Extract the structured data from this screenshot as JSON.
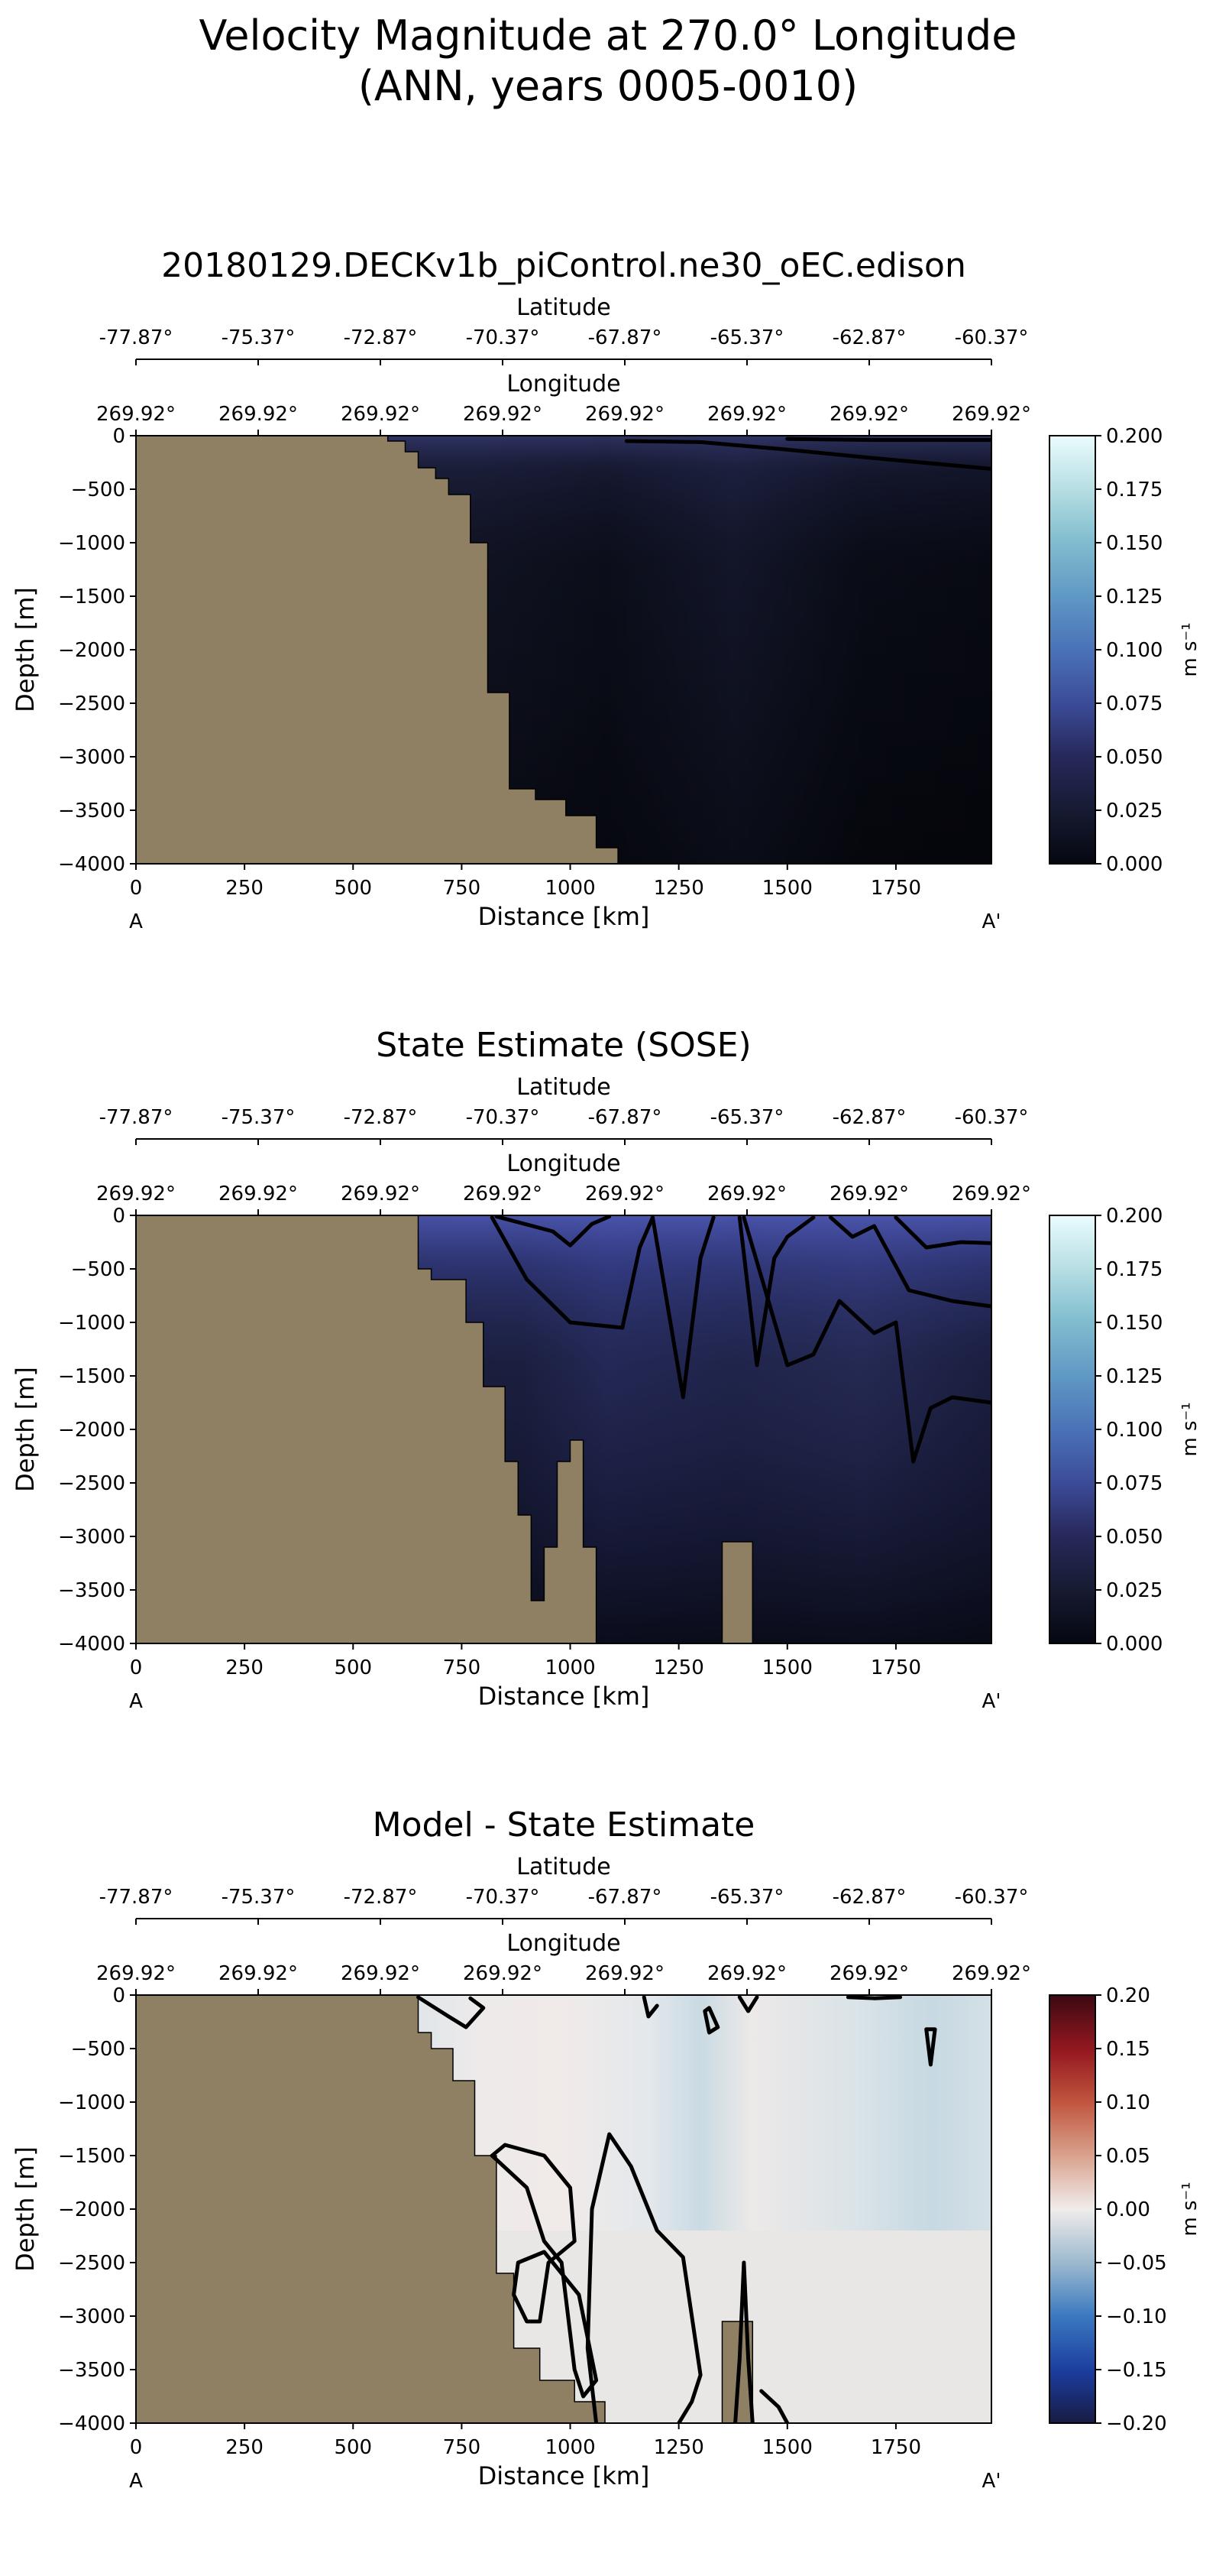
{
  "figure": {
    "suptitle_line1": "Velocity Magnitude at 270.0° Longitude",
    "suptitle_line2": "(ANN, years 0005-0010)"
  },
  "chart_data": [
    {
      "type": "heatmap",
      "title": "20180129.DECKv1b_piControl.ne30_oEC.edison",
      "xlabel": "Distance [km]",
      "ylabel": "Depth [m]",
      "xlim": [
        0,
        1970
      ],
      "ylim": [
        -4000,
        0
      ],
      "xticks": [
        0,
        250,
        500,
        750,
        1000,
        1250,
        1500,
        1750
      ],
      "yticks": [
        0,
        -500,
        -1000,
        -1500,
        -2000,
        -2500,
        -3000,
        -3500,
        -4000
      ],
      "start_label": "A",
      "end_label": "A'",
      "lat_axis_label": "Latitude",
      "lat_ticks": [
        "-77.87°",
        "-75.37°",
        "-72.87°",
        "-70.37°",
        "-67.87°",
        "-65.37°",
        "-62.87°",
        "-60.37°"
      ],
      "lon_axis_label": "Longitude",
      "lon_ticks": [
        "269.92°",
        "269.92°",
        "269.92°",
        "269.92°",
        "269.92°",
        "269.92°",
        "269.92°",
        "269.92°"
      ],
      "colorbar": {
        "label": "m s⁻¹",
        "range": [
          0,
          0.2
        ],
        "ticks": [
          "0.000",
          "0.025",
          "0.050",
          "0.075",
          "0.100",
          "0.125",
          "0.150",
          "0.175",
          "0.200"
        ],
        "colormap": "ice"
      },
      "land_color": "#8f8064",
      "bathymetry": [
        [
          0,
          0
        ],
        [
          580,
          0
        ],
        [
          580,
          -50
        ],
        [
          620,
          -50
        ],
        [
          620,
          -150
        ],
        [
          650,
          -150
        ],
        [
          650,
          -300
        ],
        [
          690,
          -300
        ],
        [
          690,
          -400
        ],
        [
          720,
          -400
        ],
        [
          720,
          -550
        ],
        [
          770,
          -550
        ],
        [
          770,
          -1000
        ],
        [
          810,
          -1000
        ],
        [
          810,
          -2400
        ],
        [
          860,
          -2400
        ],
        [
          860,
          -3300
        ],
        [
          920,
          -3300
        ],
        [
          920,
          -3400
        ],
        [
          990,
          -3400
        ],
        [
          990,
          -3550
        ],
        [
          1060,
          -3550
        ],
        [
          1060,
          -3850
        ],
        [
          1110,
          -3850
        ],
        [
          1110,
          -4000
        ],
        [
          0,
          -4000
        ]
      ],
      "contour_lines": [
        [
          [
            1130,
            -50
          ],
          [
            1300,
            -60
          ],
          [
            1500,
            -130
          ],
          [
            1700,
            -210
          ],
          [
            1970,
            -310
          ]
        ],
        [
          [
            1500,
            -30
          ],
          [
            1700,
            -40
          ],
          [
            1970,
            -40
          ]
        ]
      ]
    },
    {
      "type": "heatmap",
      "title": "State Estimate (SOSE)",
      "xlabel": "Distance [km]",
      "ylabel": "Depth [m]",
      "xlim": [
        0,
        1970
      ],
      "ylim": [
        -4000,
        0
      ],
      "xticks": [
        0,
        250,
        500,
        750,
        1000,
        1250,
        1500,
        1750
      ],
      "yticks": [
        0,
        -500,
        -1000,
        -1500,
        -2000,
        -2500,
        -3000,
        -3500,
        -4000
      ],
      "start_label": "A",
      "end_label": "A'",
      "lat_axis_label": "Latitude",
      "lat_ticks": [
        "-77.87°",
        "-75.37°",
        "-72.87°",
        "-70.37°",
        "-67.87°",
        "-65.37°",
        "-62.87°",
        "-60.37°"
      ],
      "lon_axis_label": "Longitude",
      "lon_ticks": [
        "269.92°",
        "269.92°",
        "269.92°",
        "269.92°",
        "269.92°",
        "269.92°",
        "269.92°",
        "269.92°"
      ],
      "colorbar": {
        "label": "m s⁻¹",
        "range": [
          0,
          0.2
        ],
        "ticks": [
          "0.000",
          "0.025",
          "0.050",
          "0.075",
          "0.100",
          "0.125",
          "0.150",
          "0.175",
          "0.200"
        ],
        "colormap": "ice"
      },
      "land_color": "#8f8064",
      "bathymetry": [
        [
          0,
          0
        ],
        [
          650,
          0
        ],
        [
          650,
          -500
        ],
        [
          680,
          -500
        ],
        [
          680,
          -600
        ],
        [
          760,
          -600
        ],
        [
          760,
          -1000
        ],
        [
          800,
          -1000
        ],
        [
          800,
          -1600
        ],
        [
          850,
          -1600
        ],
        [
          850,
          -2300
        ],
        [
          880,
          -2300
        ],
        [
          880,
          -2800
        ],
        [
          910,
          -2800
        ],
        [
          910,
          -3600
        ],
        [
          940,
          -3600
        ],
        [
          940,
          -3100
        ],
        [
          970,
          -3100
        ],
        [
          970,
          -2300
        ],
        [
          1000,
          -2300
        ],
        [
          1000,
          -2100
        ],
        [
          1030,
          -2100
        ],
        [
          1030,
          -3100
        ],
        [
          1060,
          -3100
        ],
        [
          1060,
          -4000
        ],
        [
          0,
          -4000
        ]
      ],
      "bathymetry_extra": [
        [
          1350,
          -4000
        ],
        [
          1350,
          -3050
        ],
        [
          1420,
          -3050
        ],
        [
          1420,
          -4000
        ]
      ],
      "contour_lines": [
        [
          [
            830,
            -10
          ],
          [
            960,
            -150
          ],
          [
            1000,
            -280
          ],
          [
            1050,
            -80
          ],
          [
            1090,
            -10
          ]
        ],
        [
          [
            820,
            -20
          ],
          [
            900,
            -600
          ],
          [
            1000,
            -1000
          ],
          [
            1120,
            -1050
          ],
          [
            1160,
            -300
          ],
          [
            1190,
            -20
          ]
        ],
        [
          [
            1190,
            -20
          ],
          [
            1260,
            -1700
          ],
          [
            1300,
            -400
          ],
          [
            1330,
            -20
          ]
        ],
        [
          [
            1390,
            -20
          ],
          [
            1430,
            -1400
          ],
          [
            1470,
            -400
          ],
          [
            1500,
            -200
          ],
          [
            1560,
            -20
          ]
        ],
        [
          [
            1400,
            -20
          ],
          [
            1500,
            -1400
          ],
          [
            1560,
            -1300
          ],
          [
            1620,
            -800
          ],
          [
            1700,
            -1100
          ],
          [
            1750,
            -1000
          ],
          [
            1790,
            -2300
          ],
          [
            1830,
            -1800
          ],
          [
            1880,
            -1700
          ],
          [
            1970,
            -1750
          ]
        ],
        [
          [
            1600,
            -20
          ],
          [
            1650,
            -200
          ],
          [
            1700,
            -100
          ],
          [
            1780,
            -700
          ],
          [
            1880,
            -800
          ],
          [
            1970,
            -850
          ]
        ],
        [
          [
            1750,
            -20
          ],
          [
            1820,
            -300
          ],
          [
            1900,
            -250
          ],
          [
            1970,
            -260
          ]
        ]
      ]
    },
    {
      "type": "heatmap",
      "title": "Model - State Estimate",
      "xlabel": "Distance [km]",
      "ylabel": "Depth [m]",
      "xlim": [
        0,
        1970
      ],
      "ylim": [
        -4000,
        0
      ],
      "xticks": [
        0,
        250,
        500,
        750,
        1000,
        1250,
        1500,
        1750
      ],
      "yticks": [
        0,
        -500,
        -1000,
        -1500,
        -2000,
        -2500,
        -3000,
        -3500,
        -4000
      ],
      "start_label": "A",
      "end_label": "A'",
      "lat_axis_label": "Latitude",
      "lat_ticks": [
        "-77.87°",
        "-75.37°",
        "-72.87°",
        "-70.37°",
        "-67.87°",
        "-65.37°",
        "-62.87°",
        "-60.37°"
      ],
      "lon_axis_label": "Longitude",
      "lon_ticks": [
        "269.92°",
        "269.92°",
        "269.92°",
        "269.92°",
        "269.92°",
        "269.92°",
        "269.92°",
        "269.92°"
      ],
      "colorbar": {
        "label": "m s⁻¹",
        "range": [
          -0.2,
          0.2
        ],
        "ticks": [
          "−0.20",
          "−0.15",
          "−0.10",
          "−0.05",
          "0.00",
          "0.05",
          "0.10",
          "0.15",
          "0.20"
        ],
        "colormap": "balance"
      },
      "land_color": "#8f8064",
      "bathymetry": [
        [
          0,
          0
        ],
        [
          650,
          0
        ],
        [
          650,
          -350
        ],
        [
          680,
          -350
        ],
        [
          680,
          -500
        ],
        [
          730,
          -500
        ],
        [
          730,
          -800
        ],
        [
          780,
          -800
        ],
        [
          780,
          -1500
        ],
        [
          830,
          -1500
        ],
        [
          830,
          -2600
        ],
        [
          870,
          -2600
        ],
        [
          870,
          -3300
        ],
        [
          930,
          -3300
        ],
        [
          930,
          -3600
        ],
        [
          1010,
          -3600
        ],
        [
          1010,
          -3800
        ],
        [
          1080,
          -3800
        ],
        [
          1080,
          -4000
        ],
        [
          0,
          -4000
        ]
      ],
      "bathymetry_extra": [
        [
          1350,
          -4000
        ],
        [
          1350,
          -3050
        ],
        [
          1420,
          -3050
        ],
        [
          1420,
          -4000
        ]
      ],
      "contour_lines": [
        [
          [
            650,
            -20
          ],
          [
            720,
            -200
          ],
          [
            760,
            -300
          ],
          [
            800,
            -120
          ],
          [
            770,
            -30
          ]
        ],
        [
          [
            820,
            -1500
          ],
          [
            900,
            -1800
          ],
          [
            940,
            -2300
          ],
          [
            980,
            -2500
          ],
          [
            1010,
            -3500
          ],
          [
            1030,
            -3750
          ],
          [
            1060,
            -3600
          ],
          [
            1020,
            -2800
          ],
          [
            940,
            -2400
          ],
          [
            880,
            -2500
          ],
          [
            870,
            -2800
          ],
          [
            900,
            -3050
          ],
          [
            930,
            -3050
          ],
          [
            950,
            -2500
          ],
          [
            1010,
            -2300
          ],
          [
            1000,
            -1800
          ],
          [
            940,
            -1500
          ],
          [
            850,
            -1400
          ],
          [
            820,
            -1500
          ]
        ],
        [
          [
            1060,
            -4000
          ],
          [
            1040,
            -3300
          ],
          [
            1050,
            -2000
          ],
          [
            1090,
            -1300
          ],
          [
            1140,
            -1600
          ],
          [
            1200,
            -2200
          ],
          [
            1260,
            -2450
          ],
          [
            1280,
            -3000
          ],
          [
            1300,
            -3550
          ],
          [
            1280,
            -3800
          ],
          [
            1250,
            -4000
          ]
        ],
        [
          [
            1380,
            -4000
          ],
          [
            1390,
            -3400
          ],
          [
            1400,
            -2500
          ],
          [
            1410,
            -3400
          ],
          [
            1420,
            -4000
          ]
        ],
        [
          [
            1440,
            -3700
          ],
          [
            1480,
            -3850
          ],
          [
            1500,
            -4000
          ]
        ],
        [
          [
            1170,
            -20
          ],
          [
            1180,
            -200
          ],
          [
            1200,
            -100
          ]
        ],
        [
          [
            1310,
            -150
          ],
          [
            1320,
            -350
          ],
          [
            1340,
            -300
          ],
          [
            1320,
            -120
          ],
          [
            1310,
            -150
          ]
        ],
        [
          [
            1390,
            -20
          ],
          [
            1410,
            -150
          ],
          [
            1430,
            -20
          ]
        ],
        [
          [
            1640,
            -20
          ],
          [
            1700,
            -30
          ],
          [
            1760,
            -20
          ]
        ],
        [
          [
            1820,
            -320
          ],
          [
            1830,
            -650
          ],
          [
            1840,
            -320
          ],
          [
            1820,
            -320
          ]
        ]
      ]
    }
  ]
}
